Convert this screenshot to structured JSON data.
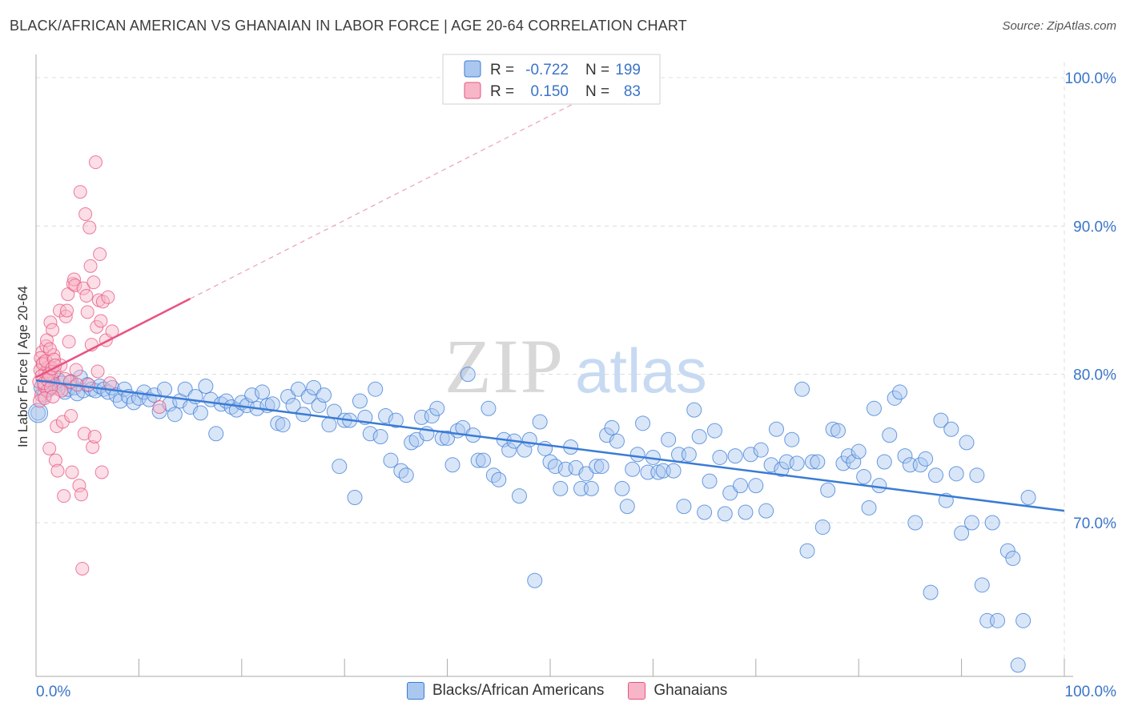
{
  "header": {
    "title": "BLACK/AFRICAN AMERICAN VS GHANAIAN IN LABOR FORCE | AGE 20-64 CORRELATION CHART",
    "source": "Source: ZipAtlas.com"
  },
  "watermark": {
    "zip": "ZIP",
    "atlas": "atlas"
  },
  "legend_box": {
    "rows": [
      {
        "r_label": "R =",
        "r_value": "-0.722",
        "n_label": "N =",
        "n_value": "199"
      },
      {
        "r_label": "R =",
        "r_value": "0.150",
        "n_label": "N =",
        "n_value": "83"
      }
    ]
  },
  "colors": {
    "blue": "#3a7bd5",
    "blue_fill": "#aac8ef",
    "pink": "#e8537f",
    "pink_fill": "#f6b6c8",
    "axis_text": "#3a74c9",
    "grid": "#dcdcdc"
  },
  "chart_data": {
    "type": "scatter",
    "title": "BLACK/AFRICAN AMERICAN VS GHANAIAN IN LABOR FORCE | AGE 20-64 CORRELATION CHART",
    "xlabel": "",
    "ylabel": "In Labor Force | Age 20-64",
    "xlim": [
      0,
      100
    ],
    "ylim": [
      60,
      100
    ],
    "x_tick_labels": [
      "0.0%",
      "100.0%"
    ],
    "y_ticks": [
      70,
      80,
      90,
      100
    ],
    "y_tick_labels": [
      "70.0%",
      "80.0%",
      "90.0%",
      "100.0%"
    ],
    "grid": true,
    "legend_position": "bottom-center",
    "series": [
      {
        "name": "Blacks/African Americans",
        "color": "#3a7bd5",
        "trend": {
          "x": [
            0,
            100
          ],
          "y": [
            79.6,
            70.8
          ]
        },
        "points": [
          [
            0.2,
            77.4
          ],
          [
            0.5,
            79.1
          ],
          [
            0.8,
            78.6
          ],
          [
            1.0,
            79.3
          ],
          [
            1.3,
            79.0
          ],
          [
            1.6,
            79.5
          ],
          [
            1.9,
            79.2
          ],
          [
            2.2,
            79.6
          ],
          [
            2.5,
            79.4
          ],
          [
            2.8,
            78.8
          ],
          [
            3.1,
            79.0
          ],
          [
            3.4,
            79.5
          ],
          [
            3.7,
            79.1
          ],
          [
            4.0,
            78.7
          ],
          [
            4.3,
            79.8
          ],
          [
            4.6,
            78.9
          ],
          [
            5.0,
            79.3
          ],
          [
            5.4,
            79.0
          ],
          [
            5.8,
            78.9
          ],
          [
            6.2,
            79.2
          ],
          [
            6.6,
            79.0
          ],
          [
            7.0,
            78.8
          ],
          [
            7.4,
            79.1
          ],
          [
            7.8,
            78.6
          ],
          [
            8.2,
            78.2
          ],
          [
            8.6,
            79.0
          ],
          [
            9.0,
            78.5
          ],
          [
            9.5,
            78.1
          ],
          [
            10.0,
            78.4
          ],
          [
            10.5,
            78.8
          ],
          [
            11.0,
            78.3
          ],
          [
            11.5,
            78.6
          ],
          [
            12.0,
            77.5
          ],
          [
            12.5,
            79.0
          ],
          [
            13.0,
            78.0
          ],
          [
            13.5,
            77.3
          ],
          [
            14.0,
            78.2
          ],
          [
            14.5,
            79.0
          ],
          [
            15.0,
            77.8
          ],
          [
            15.5,
            78.5
          ],
          [
            16.0,
            77.4
          ],
          [
            16.5,
            79.2
          ],
          [
            17.0,
            78.3
          ],
          [
            17.5,
            76.0
          ],
          [
            18.0,
            78.0
          ],
          [
            18.5,
            78.2
          ],
          [
            19.0,
            77.8
          ],
          [
            19.5,
            77.6
          ],
          [
            20.0,
            78.1
          ],
          [
            20.5,
            77.9
          ],
          [
            21.0,
            78.6
          ],
          [
            21.5,
            77.7
          ],
          [
            22.0,
            78.8
          ],
          [
            22.5,
            77.9
          ],
          [
            23.0,
            78.0
          ],
          [
            23.5,
            76.7
          ],
          [
            24.0,
            76.6
          ],
          [
            24.5,
            78.5
          ],
          [
            25.0,
            77.9
          ],
          [
            25.5,
            79.0
          ],
          [
            26.0,
            77.3
          ],
          [
            26.5,
            78.5
          ],
          [
            27.0,
            79.1
          ],
          [
            27.5,
            77.9
          ],
          [
            28.0,
            78.6
          ],
          [
            28.5,
            76.6
          ],
          [
            29.0,
            77.5
          ],
          [
            29.5,
            73.8
          ],
          [
            30.0,
            76.9
          ],
          [
            30.5,
            76.9
          ],
          [
            31.0,
            71.7
          ],
          [
            31.5,
            78.2
          ],
          [
            32.0,
            77.1
          ],
          [
            32.5,
            76.0
          ],
          [
            33.0,
            79.0
          ],
          [
            33.5,
            75.8
          ],
          [
            34.0,
            77.2
          ],
          [
            34.5,
            74.2
          ],
          [
            35.0,
            76.9
          ],
          [
            35.5,
            73.5
          ],
          [
            36.0,
            73.2
          ],
          [
            36.5,
            75.4
          ],
          [
            37.0,
            75.6
          ],
          [
            37.5,
            77.1
          ],
          [
            38.0,
            76.0
          ],
          [
            38.5,
            77.2
          ],
          [
            39.0,
            77.7
          ],
          [
            39.5,
            75.7
          ],
          [
            40.0,
            75.7
          ],
          [
            40.5,
            73.9
          ],
          [
            41.0,
            76.2
          ],
          [
            41.5,
            76.4
          ],
          [
            42.0,
            80.0
          ],
          [
            42.5,
            75.9
          ],
          [
            43.0,
            74.2
          ],
          [
            43.5,
            74.2
          ],
          [
            44.0,
            77.7
          ],
          [
            44.5,
            73.2
          ],
          [
            45.0,
            72.9
          ],
          [
            45.5,
            75.6
          ],
          [
            46.0,
            74.9
          ],
          [
            46.5,
            75.5
          ],
          [
            47.0,
            71.8
          ],
          [
            47.5,
            74.9
          ],
          [
            48.0,
            75.6
          ],
          [
            48.5,
            66.1
          ],
          [
            49.0,
            76.8
          ],
          [
            49.5,
            75.0
          ],
          [
            50.0,
            74.1
          ],
          [
            50.5,
            73.8
          ],
          [
            51.0,
            72.3
          ],
          [
            51.5,
            73.6
          ],
          [
            52.0,
            75.1
          ],
          [
            52.5,
            73.7
          ],
          [
            53.0,
            72.3
          ],
          [
            53.5,
            73.3
          ],
          [
            54.0,
            72.3
          ],
          [
            54.5,
            73.8
          ],
          [
            55.0,
            73.8
          ],
          [
            55.5,
            75.9
          ],
          [
            56.0,
            76.4
          ],
          [
            56.5,
            75.5
          ],
          [
            57.0,
            72.3
          ],
          [
            57.5,
            71.1
          ],
          [
            58.0,
            73.6
          ],
          [
            58.5,
            74.6
          ],
          [
            59.0,
            76.7
          ],
          [
            59.5,
            73.4
          ],
          [
            60.0,
            74.4
          ],
          [
            60.5,
            73.4
          ],
          [
            61.0,
            73.5
          ],
          [
            61.5,
            75.6
          ],
          [
            62.0,
            73.5
          ],
          [
            62.5,
            74.6
          ],
          [
            63.0,
            71.1
          ],
          [
            63.5,
            74.6
          ],
          [
            64.0,
            77.6
          ],
          [
            64.5,
            75.8
          ],
          [
            65.0,
            70.7
          ],
          [
            65.5,
            72.8
          ],
          [
            66.0,
            76.2
          ],
          [
            66.5,
            74.4
          ],
          [
            67.0,
            70.6
          ],
          [
            67.5,
            72.0
          ],
          [
            68.0,
            74.5
          ],
          [
            68.5,
            72.5
          ],
          [
            69.0,
            70.7
          ],
          [
            69.5,
            74.6
          ],
          [
            70.0,
            72.5
          ],
          [
            70.5,
            74.9
          ],
          [
            71.0,
            70.8
          ],
          [
            71.5,
            73.9
          ],
          [
            72.0,
            76.3
          ],
          [
            72.5,
            73.6
          ],
          [
            73.0,
            74.1
          ],
          [
            73.5,
            75.6
          ],
          [
            74.0,
            74.0
          ],
          [
            74.5,
            79.0
          ],
          [
            75.0,
            68.1
          ],
          [
            75.5,
            74.1
          ],
          [
            76.0,
            74.1
          ],
          [
            76.5,
            69.7
          ],
          [
            77.0,
            72.2
          ],
          [
            77.5,
            76.3
          ],
          [
            78.0,
            76.2
          ],
          [
            78.5,
            74.0
          ],
          [
            79.0,
            74.5
          ],
          [
            79.5,
            74.1
          ],
          [
            80.0,
            74.8
          ],
          [
            80.5,
            73.1
          ],
          [
            81.0,
            71.0
          ],
          [
            81.5,
            77.7
          ],
          [
            82.0,
            72.5
          ],
          [
            82.5,
            74.1
          ],
          [
            83.0,
            75.9
          ],
          [
            83.5,
            78.4
          ],
          [
            84.0,
            78.8
          ],
          [
            84.5,
            74.5
          ],
          [
            85.0,
            73.9
          ],
          [
            85.5,
            70.0
          ],
          [
            86.0,
            73.9
          ],
          [
            86.5,
            74.3
          ],
          [
            87.0,
            65.3
          ],
          [
            87.5,
            73.2
          ],
          [
            88.0,
            76.9
          ],
          [
            88.5,
            71.5
          ],
          [
            89.0,
            76.3
          ],
          [
            89.5,
            73.3
          ],
          [
            90.0,
            69.3
          ],
          [
            90.5,
            75.4
          ],
          [
            91.0,
            70.0
          ],
          [
            91.5,
            73.2
          ],
          [
            92.0,
            65.8
          ],
          [
            92.5,
            63.4
          ],
          [
            93.0,
            70.0
          ],
          [
            93.5,
            63.4
          ],
          [
            94.5,
            68.1
          ],
          [
            95.0,
            67.6
          ],
          [
            95.5,
            60.4
          ],
          [
            96.0,
            63.4
          ],
          [
            96.5,
            71.7
          ]
        ]
      },
      {
        "name": "Ghanaians",
        "color": "#e8537f",
        "trend": {
          "x": [
            0,
            15
          ],
          "y": [
            79.8,
            85.1
          ]
        },
        "trend_dashed": {
          "x": [
            15,
            55
          ],
          "y": [
            85.1,
            99.2
          ]
        },
        "points": [
          [
            0.3,
            79.5
          ],
          [
            0.4,
            80.3
          ],
          [
            0.5,
            78.6
          ],
          [
            0.6,
            81.5
          ],
          [
            0.7,
            80.8
          ],
          [
            0.8,
            79.2
          ],
          [
            0.9,
            80.1
          ],
          [
            1.0,
            81.9
          ],
          [
            1.1,
            78.9
          ],
          [
            1.2,
            80.5
          ],
          [
            1.3,
            75.0
          ],
          [
            1.4,
            83.5
          ],
          [
            1.5,
            79.8
          ],
          [
            1.6,
            83.0
          ],
          [
            1.7,
            81.3
          ],
          [
            1.8,
            80.2
          ],
          [
            1.9,
            74.2
          ],
          [
            2.0,
            76.5
          ],
          [
            2.1,
            73.5
          ],
          [
            2.2,
            79.0
          ],
          [
            2.3,
            84.3
          ],
          [
            2.4,
            80.6
          ],
          [
            2.5,
            78.9
          ],
          [
            2.6,
            76.8
          ],
          [
            2.7,
            71.8
          ],
          [
            2.8,
            79.7
          ],
          [
            2.9,
            83.9
          ],
          [
            3.0,
            84.3
          ],
          [
            3.1,
            85.4
          ],
          [
            3.2,
            82.2
          ],
          [
            3.3,
            79.5
          ],
          [
            3.4,
            77.2
          ],
          [
            3.5,
            73.4
          ],
          [
            3.6,
            86.1
          ],
          [
            3.7,
            86.4
          ],
          [
            3.8,
            86.0
          ],
          [
            3.9,
            80.3
          ],
          [
            4.0,
            79.3
          ],
          [
            4.2,
            72.5
          ],
          [
            4.3,
            92.3
          ],
          [
            4.4,
            71.9
          ],
          [
            4.5,
            66.9
          ],
          [
            4.6,
            85.8
          ],
          [
            4.7,
            76.0
          ],
          [
            4.8,
            90.8
          ],
          [
            4.9,
            85.3
          ],
          [
            5.0,
            84.2
          ],
          [
            5.1,
            79.3
          ],
          [
            5.2,
            89.9
          ],
          [
            5.3,
            87.3
          ],
          [
            5.4,
            82.0
          ],
          [
            5.5,
            75.1
          ],
          [
            5.6,
            86.2
          ],
          [
            5.7,
            75.8
          ],
          [
            5.8,
            94.3
          ],
          [
            5.9,
            83.2
          ],
          [
            6.0,
            80.2
          ],
          [
            6.1,
            85.0
          ],
          [
            6.2,
            88.1
          ],
          [
            6.3,
            83.6
          ],
          [
            6.4,
            73.4
          ],
          [
            6.5,
            84.9
          ],
          [
            6.8,
            82.3
          ],
          [
            7.0,
            85.2
          ],
          [
            7.2,
            79.4
          ],
          [
            7.4,
            82.9
          ],
          [
            0.35,
            78.2
          ],
          [
            0.45,
            81.1
          ],
          [
            0.55,
            79.9
          ],
          [
            0.65,
            80.7
          ],
          [
            0.75,
            79.4
          ],
          [
            0.85,
            78.4
          ],
          [
            0.95,
            80.9
          ],
          [
            1.05,
            82.3
          ],
          [
            1.15,
            79.6
          ],
          [
            1.25,
            80.0
          ],
          [
            1.35,
            81.7
          ],
          [
            1.45,
            79.1
          ],
          [
            1.55,
            80.4
          ],
          [
            1.65,
            78.5
          ],
          [
            12.0,
            77.8
          ],
          [
            1.75,
            81.0
          ],
          [
            1.85,
            80.6
          ]
        ]
      }
    ]
  }
}
